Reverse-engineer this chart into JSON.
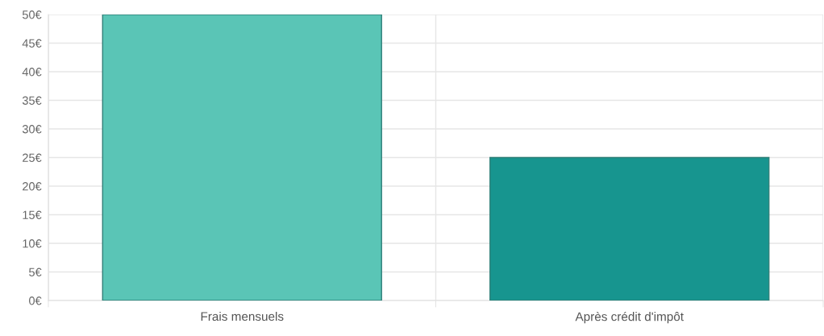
{
  "chart_data": {
    "type": "bar",
    "categories": [
      "Frais mensuels",
      "Après crédit d'impôt"
    ],
    "values": [
      50,
      25
    ],
    "colors": [
      "#5ac5b6",
      "#17958f"
    ],
    "ylim": [
      0,
      50
    ],
    "yticks": [
      {
        "value": 0,
        "label": "0€"
      },
      {
        "value": 5,
        "label": "5€"
      },
      {
        "value": 10,
        "label": "10€"
      },
      {
        "value": 15,
        "label": "15€"
      },
      {
        "value": 20,
        "label": "20€"
      },
      {
        "value": 25,
        "label": "25€"
      },
      {
        "value": 30,
        "label": "30€"
      },
      {
        "value": 35,
        "label": "35€"
      },
      {
        "value": 40,
        "label": "40€"
      },
      {
        "value": 45,
        "label": "45€"
      },
      {
        "value": 50,
        "label": "50€"
      }
    ],
    "grid": true
  }
}
